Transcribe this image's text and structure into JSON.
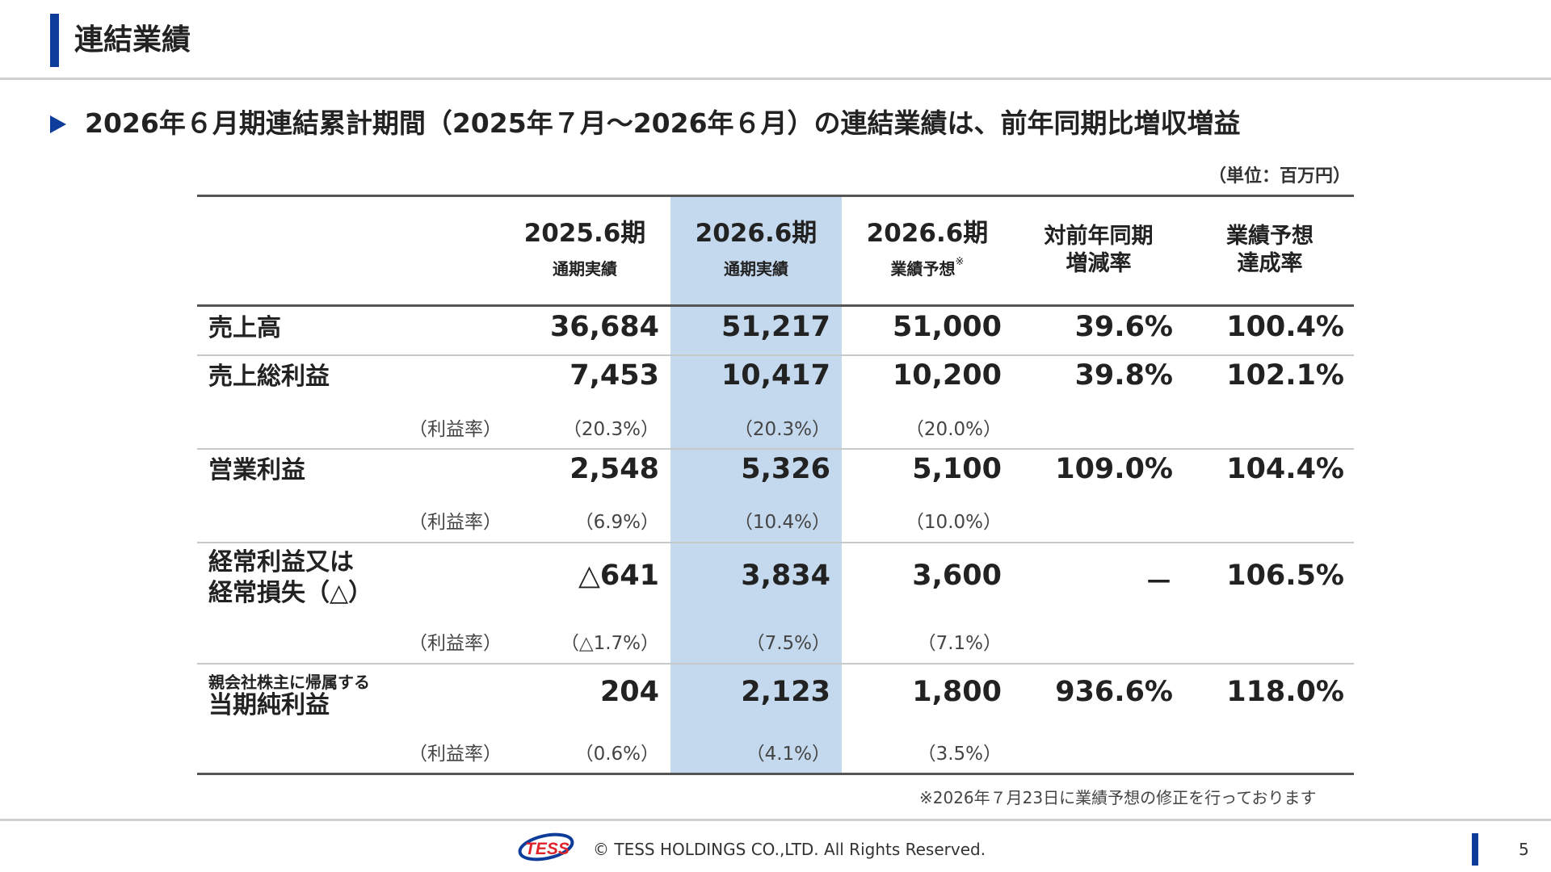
{
  "header": {
    "title": "連結業績"
  },
  "headline": "2026年６月期連結累計期間（2025年７月～2026年６月）の連結業績は、前年同期比増収増益",
  "unit": "（単位：百万円）",
  "columns": [
    {
      "year": "2025.6期",
      "sub": "通期実績"
    },
    {
      "year": "2026.6期",
      "sub": "通期実績"
    },
    {
      "year": "2026.6期",
      "sub": "業績予想",
      "mark": "※"
    },
    {
      "line1": "対前年同期",
      "line2": "増減率"
    },
    {
      "line1": "業績予想",
      "line2": "達成率"
    }
  ],
  "rate_label": "（利益率）",
  "rows": [
    {
      "label": "売上高",
      "values": [
        "36,684",
        "51,217",
        "51,000",
        "39.6%",
        "100.4%"
      ]
    },
    {
      "label": "売上総利益",
      "values": [
        "7,453",
        "10,417",
        "10,200",
        "39.8%",
        "102.1%"
      ],
      "rates": [
        "（20.3%）",
        "（20.3%）",
        "（20.0%）"
      ]
    },
    {
      "label": "営業利益",
      "values": [
        "2,548",
        "5,326",
        "5,100",
        "109.0%",
        "104.4%"
      ],
      "rates": [
        "（6.9%）",
        "（10.4%）",
        "（10.0%）"
      ]
    },
    {
      "label_line1": "経常利益又は",
      "label_line2": "経常損失（△）",
      "values": [
        "△641",
        "3,834",
        "3,600",
        "－",
        "106.5%"
      ],
      "rates": [
        "（△1.7%）",
        "（7.5%）",
        "（7.1%）"
      ]
    },
    {
      "label_small": "親会社株主に帰属する",
      "label": "当期純利益",
      "values": [
        "204",
        "2,123",
        "1,800",
        "936.6%",
        "118.0%"
      ],
      "rates": [
        "（0.6%）",
        "（4.1%）",
        "（3.5%）"
      ]
    }
  ],
  "footnote": "※2026年７月23日に業績予想の修正を行っております",
  "footer": {
    "logo_text": "TESS",
    "copyright": "© TESS HOLDINGS CO.,LTD. All Rights Reserved.",
    "page": "5"
  },
  "colors": {
    "accent": "#0d3c9a",
    "highlight": "#c5d9ee",
    "logo_red": "#e0242c"
  }
}
